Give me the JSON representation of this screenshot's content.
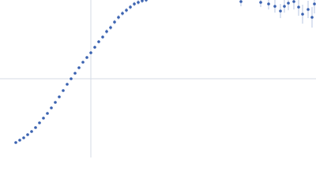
{
  "chart_data": {
    "type": "scatter",
    "x": [
      20,
      25,
      30,
      35,
      40,
      45,
      50,
      55,
      60,
      65,
      70,
      75,
      80,
      85,
      90,
      95,
      100,
      105,
      110,
      115,
      120,
      125,
      130,
      135,
      140,
      145,
      150,
      155,
      160,
      165,
      170,
      175,
      180,
      185,
      305,
      330,
      340,
      348,
      355,
      360,
      365,
      372,
      378,
      383,
      390,
      395,
      398
    ],
    "values": [
      19,
      22,
      25,
      29,
      33,
      38,
      44,
      50,
      56,
      63,
      70,
      77,
      85,
      93,
      100,
      107,
      114,
      121,
      127,
      133,
      140,
      147,
      153,
      160,
      165,
      172,
      178,
      183,
      187,
      191,
      195,
      197,
      199,
      200,
      198,
      197,
      195,
      192,
      186,
      192,
      196,
      198,
      191,
      182,
      188,
      178,
      195
    ],
    "errors": [
      1,
      1,
      1,
      1,
      1,
      1,
      1,
      1,
      1,
      1,
      1,
      1,
      1,
      1,
      1,
      1,
      1,
      1,
      2,
      2,
      2,
      2,
      2,
      3,
      3,
      3,
      3,
      3,
      3,
      3,
      3,
      3,
      3,
      3,
      6,
      6,
      7,
      8,
      9,
      8,
      9,
      10,
      11,
      12,
      11,
      13,
      12
    ],
    "color": "#3a62b0",
    "xlim": [
      0,
      400
    ],
    "ylim": [
      0,
      200
    ],
    "xticks": [
      115
    ],
    "yticks": [
      100
    ],
    "grid": true
  }
}
